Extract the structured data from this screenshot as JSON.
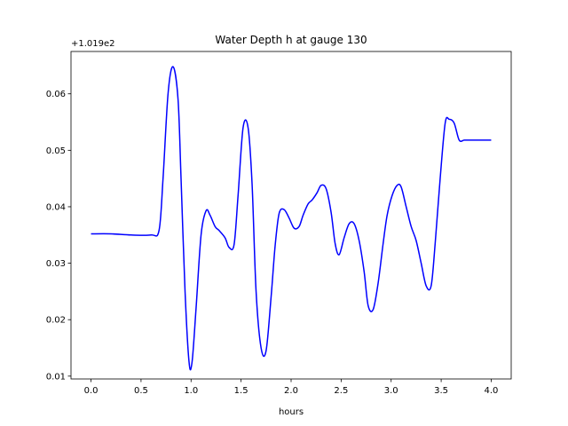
{
  "chart_data": {
    "type": "line",
    "title": "Water Depth h at gauge 130",
    "xlabel": "hours",
    "ylabel": "",
    "y_offset_label": "+1.019e2",
    "xlim": [
      -0.2,
      4.2
    ],
    "ylim": [
      0.0095,
      0.0675
    ],
    "x_ticks": [
      {
        "value": 0.0,
        "label": "0.0"
      },
      {
        "value": 0.5,
        "label": "0.5"
      },
      {
        "value": 1.0,
        "label": "1.0"
      },
      {
        "value": 1.5,
        "label": "1.5"
      },
      {
        "value": 2.0,
        "label": "2.0"
      },
      {
        "value": 2.5,
        "label": "2.5"
      },
      {
        "value": 3.0,
        "label": "3.0"
      },
      {
        "value": 3.5,
        "label": "3.5"
      },
      {
        "value": 4.0,
        "label": "4.0"
      }
    ],
    "y_ticks": [
      {
        "value": 0.01,
        "label": "0.01"
      },
      {
        "value": 0.02,
        "label": "0.02"
      },
      {
        "value": 0.03,
        "label": "0.03"
      },
      {
        "value": 0.04,
        "label": "0.04"
      },
      {
        "value": 0.05,
        "label": "0.05"
      },
      {
        "value": 0.06,
        "label": "0.06"
      }
    ],
    "grid": false,
    "series": [
      {
        "color": "#0000ff",
        "x": [
          0.0,
          0.2,
          0.4,
          0.6,
          0.68,
          0.72,
          0.77,
          0.82,
          0.87,
          0.9,
          0.94,
          0.98,
          1.01,
          1.05,
          1.1,
          1.15,
          1.19,
          1.24,
          1.28,
          1.34,
          1.38,
          1.43,
          1.47,
          1.52,
          1.57,
          1.61,
          1.65,
          1.7,
          1.75,
          1.8,
          1.84,
          1.88,
          1.93,
          1.98,
          2.03,
          2.08,
          2.12,
          2.17,
          2.21,
          2.26,
          2.3,
          2.35,
          2.4,
          2.44,
          2.48,
          2.53,
          2.58,
          2.63,
          2.68,
          2.73,
          2.77,
          2.82,
          2.87,
          2.92,
          2.96,
          3.01,
          3.06,
          3.1,
          3.15,
          3.2,
          3.25,
          3.3,
          3.35,
          3.4,
          3.44,
          3.49,
          3.54,
          3.58,
          3.63,
          3.68,
          3.73,
          3.78,
          3.83,
          3.88,
          3.93,
          3.97,
          4.0
        ],
        "y": [
          0.0352,
          0.0352,
          0.035,
          0.035,
          0.0358,
          0.045,
          0.06,
          0.0648,
          0.059,
          0.045,
          0.025,
          0.0125,
          0.0125,
          0.022,
          0.035,
          0.0393,
          0.0385,
          0.0365,
          0.0358,
          0.0345,
          0.0328,
          0.0333,
          0.042,
          0.054,
          0.054,
          0.044,
          0.025,
          0.015,
          0.0145,
          0.024,
          0.033,
          0.0388,
          0.0395,
          0.038,
          0.0362,
          0.0365,
          0.0385,
          0.0405,
          0.0412,
          0.0425,
          0.0438,
          0.0432,
          0.039,
          0.0335,
          0.0315,
          0.0345,
          0.037,
          0.037,
          0.034,
          0.0285,
          0.0225,
          0.0218,
          0.0265,
          0.0335,
          0.0385,
          0.042,
          0.0438,
          0.0435,
          0.04,
          0.0365,
          0.034,
          0.03,
          0.026,
          0.026,
          0.0335,
          0.045,
          0.0548,
          0.0555,
          0.0548,
          0.0518,
          0.0518,
          0.0518,
          0.0518,
          0.0518,
          0.0518,
          0.0518,
          0.0518
        ]
      }
    ]
  }
}
